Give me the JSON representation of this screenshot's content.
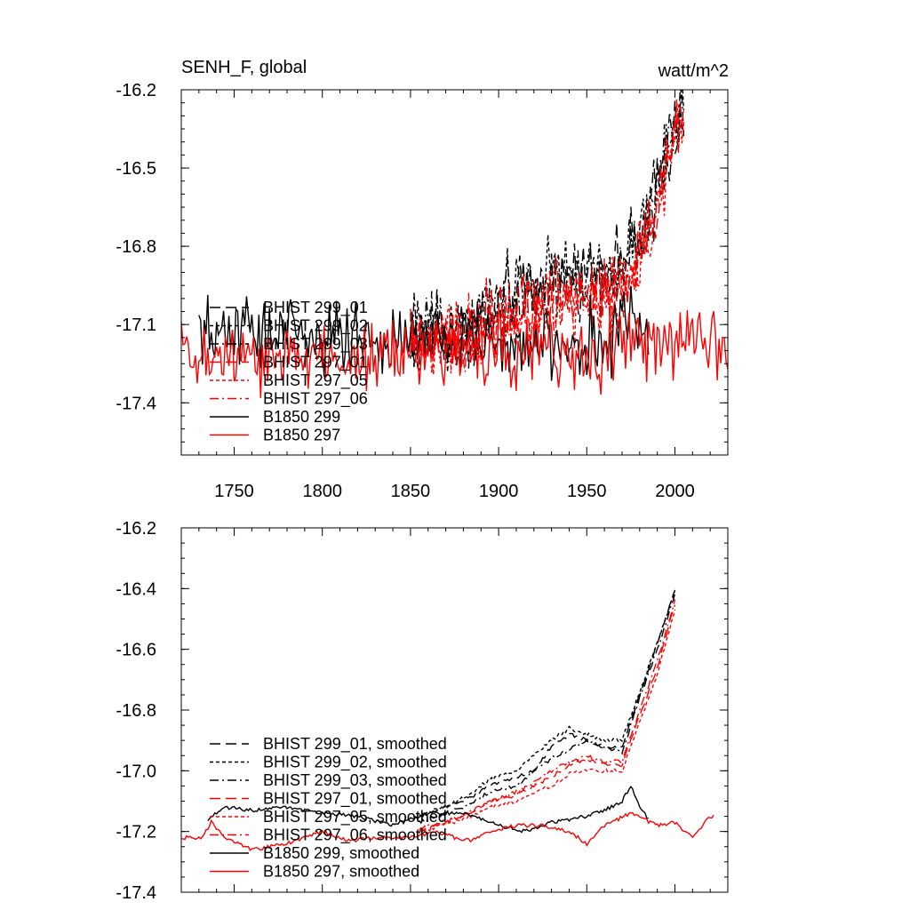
{
  "chart_data": [
    {
      "type": "line",
      "title": "SENH_F, global",
      "units": "watt/m^2",
      "xlim": [
        1720,
        2030
      ],
      "ylim": [
        -17.6,
        -16.2
      ],
      "xticks": [
        1750,
        1800,
        1850,
        1900,
        1950,
        2000
      ],
      "yticks": [
        -16.2,
        -16.5,
        -16.8,
        -17.1,
        -17.4
      ],
      "ytick_labels": [
        "-16.2",
        "-16.5",
        "-16.8",
        "-17.1",
        "-17.4"
      ],
      "legend_position": "left-middle",
      "series": [
        {
          "name": "BHIST 299_01",
          "color": "#000000",
          "dash": "long-dash",
          "x_start": 1850,
          "x_end": 2005,
          "anchors": [
            [
              1850,
              -17.15
            ],
            [
              1880,
              -17.12
            ],
            [
              1900,
              -17.02
            ],
            [
              1930,
              -16.93
            ],
            [
              1950,
              -16.9
            ],
            [
              1970,
              -16.88
            ],
            [
              1985,
              -16.68
            ],
            [
              1995,
              -16.45
            ],
            [
              2005,
              -16.25
            ]
          ]
        },
        {
          "name": "BHIST 299_02",
          "color": "#000000",
          "dash": "short-dash",
          "x_start": 1850,
          "x_end": 2005,
          "anchors": [
            [
              1850,
              -17.15
            ],
            [
              1880,
              -17.12
            ],
            [
              1900,
              -17.0
            ],
            [
              1930,
              -16.9
            ],
            [
              1950,
              -16.9
            ],
            [
              1970,
              -16.88
            ],
            [
              1985,
              -16.7
            ],
            [
              1995,
              -16.45
            ],
            [
              2005,
              -16.25
            ]
          ]
        },
        {
          "name": "BHIST 299_03",
          "color": "#000000",
          "dash": "dash-dot",
          "x_start": 1850,
          "x_end": 2005,
          "anchors": [
            [
              1850,
              -17.15
            ],
            [
              1880,
              -17.14
            ],
            [
              1900,
              -17.05
            ],
            [
              1930,
              -16.95
            ],
            [
              1950,
              -16.93
            ],
            [
              1970,
              -16.92
            ],
            [
              1985,
              -16.7
            ],
            [
              1995,
              -16.47
            ],
            [
              2005,
              -16.25
            ]
          ]
        },
        {
          "name": "BHIST 297_01",
          "color": "#ff0000",
          "dash": "long-dash",
          "x_start": 1850,
          "x_end": 2005,
          "anchors": [
            [
              1850,
              -17.17
            ],
            [
              1880,
              -17.17
            ],
            [
              1900,
              -17.08
            ],
            [
              1930,
              -17.0
            ],
            [
              1950,
              -16.98
            ],
            [
              1970,
              -16.96
            ],
            [
              1985,
              -16.75
            ],
            [
              1995,
              -16.5
            ],
            [
              2005,
              -16.28
            ]
          ]
        },
        {
          "name": "BHIST 297_05",
          "color": "#ff0000",
          "dash": "short-dash",
          "x_start": 1850,
          "x_end": 2005,
          "anchors": [
            [
              1850,
              -17.17
            ],
            [
              1880,
              -17.17
            ],
            [
              1900,
              -17.1
            ],
            [
              1930,
              -17.02
            ],
            [
              1950,
              -17.0
            ],
            [
              1970,
              -16.98
            ],
            [
              1985,
              -16.76
            ],
            [
              1995,
              -16.52
            ],
            [
              2005,
              -16.28
            ]
          ]
        },
        {
          "name": "BHIST 297_06",
          "color": "#ff0000",
          "dash": "dash-dot",
          "x_start": 1850,
          "x_end": 2005,
          "anchors": [
            [
              1850,
              -17.17
            ],
            [
              1880,
              -17.16
            ],
            [
              1900,
              -17.08
            ],
            [
              1930,
              -17.0
            ],
            [
              1950,
              -16.98
            ],
            [
              1970,
              -16.95
            ],
            [
              1985,
              -16.74
            ],
            [
              1995,
              -16.5
            ],
            [
              2005,
              -16.27
            ]
          ]
        },
        {
          "name": "B1850 299",
          "color": "#000000",
          "dash": "solid",
          "x_start": 1730,
          "x_end": 1985,
          "anchors": [
            [
              1730,
              -17.16
            ],
            [
              1760,
              -17.12
            ],
            [
              1800,
              -17.14
            ],
            [
              1840,
              -17.18
            ],
            [
              1880,
              -17.14
            ],
            [
              1920,
              -17.2
            ],
            [
              1960,
              -17.15
            ],
            [
              1975,
              -17.05
            ],
            [
              1985,
              -17.15
            ]
          ]
        },
        {
          "name": "B1850 297",
          "color": "#ff0000",
          "dash": "solid",
          "x_start": 1720,
          "x_end": 2030,
          "anchors": [
            [
              1720,
              -17.22
            ],
            [
              1760,
              -17.24
            ],
            [
              1800,
              -17.22
            ],
            [
              1850,
              -17.22
            ],
            [
              1880,
              -17.2
            ],
            [
              1920,
              -17.19
            ],
            [
              1950,
              -17.22
            ],
            [
              1975,
              -17.17
            ],
            [
              2000,
              -17.18
            ],
            [
              2030,
              -17.16
            ]
          ]
        }
      ]
    },
    {
      "type": "line",
      "title": "",
      "xlim": [
        1720,
        2030
      ],
      "ylim": [
        -17.4,
        -16.2
      ],
      "yticks": [
        -16.2,
        -16.4,
        -16.6,
        -16.8,
        -17.0,
        -17.2,
        -17.4
      ],
      "ytick_labels": [
        "-16.2",
        "-16.4",
        "-16.6",
        "-16.8",
        "-17.0",
        "-17.2",
        "-17.4"
      ],
      "legend_position": "bottom-left",
      "series": [
        {
          "name": "BHIST 299_01, smoothed",
          "color": "#000000",
          "dash": "long-dash",
          "x_start": 1855,
          "x_end": 2000,
          "anchors": [
            [
              1855,
              -17.15
            ],
            [
              1880,
              -17.1
            ],
            [
              1895,
              -17.05
            ],
            [
              1910,
              -17.02
            ],
            [
              1920,
              -17.0
            ],
            [
              1930,
              -16.92
            ],
            [
              1940,
              -16.88
            ],
            [
              1950,
              -16.9
            ],
            [
              1960,
              -16.93
            ],
            [
              1970,
              -16.92
            ],
            [
              1980,
              -16.75
            ],
            [
              1990,
              -16.58
            ],
            [
              2000,
              -16.4
            ]
          ]
        },
        {
          "name": "BHIST 299_02, smoothed",
          "color": "#000000",
          "dash": "short-dash",
          "x_start": 1855,
          "x_end": 2000,
          "anchors": [
            [
              1855,
              -17.15
            ],
            [
              1880,
              -17.09
            ],
            [
              1895,
              -17.03
            ],
            [
              1910,
              -17.0
            ],
            [
              1920,
              -16.95
            ],
            [
              1930,
              -16.9
            ],
            [
              1940,
              -16.86
            ],
            [
              1950,
              -16.88
            ],
            [
              1960,
              -16.9
            ],
            [
              1970,
              -16.9
            ],
            [
              1980,
              -16.74
            ],
            [
              1990,
              -16.58
            ],
            [
              2000,
              -16.41
            ]
          ]
        },
        {
          "name": "BHIST 299_03, smoothed",
          "color": "#000000",
          "dash": "dash-dot",
          "x_start": 1855,
          "x_end": 2000,
          "anchors": [
            [
              1855,
              -17.17
            ],
            [
              1880,
              -17.12
            ],
            [
              1895,
              -17.07
            ],
            [
              1910,
              -17.05
            ],
            [
              1920,
              -17.0
            ],
            [
              1930,
              -16.96
            ],
            [
              1940,
              -16.93
            ],
            [
              1950,
              -16.9
            ],
            [
              1960,
              -16.92
            ],
            [
              1970,
              -16.94
            ],
            [
              1980,
              -16.76
            ],
            [
              1990,
              -16.6
            ],
            [
              2000,
              -16.42
            ]
          ]
        },
        {
          "name": "BHIST 297_01, smoothed",
          "color": "#ff0000",
          "dash": "long-dash",
          "x_start": 1855,
          "x_end": 2000,
          "anchors": [
            [
              1855,
              -17.2
            ],
            [
              1880,
              -17.15
            ],
            [
              1895,
              -17.1
            ],
            [
              1910,
              -17.08
            ],
            [
              1920,
              -17.05
            ],
            [
              1930,
              -17.02
            ],
            [
              1940,
              -16.98
            ],
            [
              1950,
              -16.96
            ],
            [
              1960,
              -16.98
            ],
            [
              1970,
              -16.98
            ],
            [
              1980,
              -16.82
            ],
            [
              1990,
              -16.66
            ],
            [
              2000,
              -16.45
            ]
          ]
        },
        {
          "name": "BHIST 297_05, smoothed",
          "color": "#ff0000",
          "dash": "short-dash",
          "x_start": 1855,
          "x_end": 2000,
          "anchors": [
            [
              1855,
              -17.2
            ],
            [
              1880,
              -17.16
            ],
            [
              1895,
              -17.12
            ],
            [
              1910,
              -17.1
            ],
            [
              1920,
              -17.07
            ],
            [
              1930,
              -17.05
            ],
            [
              1940,
              -17.01
            ],
            [
              1950,
              -17.0
            ],
            [
              1960,
              -17.0
            ],
            [
              1970,
              -17.0
            ],
            [
              1980,
              -16.84
            ],
            [
              1990,
              -16.68
            ],
            [
              2000,
              -16.47
            ]
          ]
        },
        {
          "name": "BHIST 297_06, smoothed",
          "color": "#ff0000",
          "dash": "dash-dot",
          "x_start": 1855,
          "x_end": 2000,
          "anchors": [
            [
              1855,
              -17.19
            ],
            [
              1880,
              -17.15
            ],
            [
              1895,
              -17.1
            ],
            [
              1910,
              -17.07
            ],
            [
              1920,
              -17.04
            ],
            [
              1930,
              -17.0
            ],
            [
              1940,
              -16.97
            ],
            [
              1950,
              -16.95
            ],
            [
              1960,
              -16.97
            ],
            [
              1970,
              -16.97
            ],
            [
              1980,
              -16.8
            ],
            [
              1990,
              -16.64
            ],
            [
              2000,
              -16.44
            ]
          ]
        },
        {
          "name": "B1850 299, smoothed",
          "color": "#000000",
          "dash": "solid",
          "x_start": 1735,
          "x_end": 1985,
          "anchors": [
            [
              1735,
              -17.16
            ],
            [
              1745,
              -17.12
            ],
            [
              1760,
              -17.13
            ],
            [
              1780,
              -17.12
            ],
            [
              1800,
              -17.14
            ],
            [
              1820,
              -17.15
            ],
            [
              1840,
              -17.18
            ],
            [
              1860,
              -17.14
            ],
            [
              1880,
              -17.14
            ],
            [
              1900,
              -17.18
            ],
            [
              1915,
              -17.2
            ],
            [
              1930,
              -17.17
            ],
            [
              1950,
              -17.15
            ],
            [
              1960,
              -17.13
            ],
            [
              1970,
              -17.1
            ],
            [
              1975,
              -17.05
            ],
            [
              1980,
              -17.12
            ],
            [
              1985,
              -17.16
            ]
          ]
        },
        {
          "name": "B1850 297, smoothed",
          "color": "#ff0000",
          "dash": "solid",
          "x_start": 1720,
          "x_end": 2022,
          "anchors": [
            [
              1720,
              -17.22
            ],
            [
              1732,
              -17.22
            ],
            [
              1737,
              -17.17
            ],
            [
              1745,
              -17.22
            ],
            [
              1760,
              -17.26
            ],
            [
              1780,
              -17.24
            ],
            [
              1800,
              -17.2
            ],
            [
              1815,
              -17.23
            ],
            [
              1830,
              -17.22
            ],
            [
              1850,
              -17.22
            ],
            [
              1865,
              -17.2
            ],
            [
              1875,
              -17.22
            ],
            [
              1885,
              -17.23
            ],
            [
              1895,
              -17.2
            ],
            [
              1910,
              -17.18
            ],
            [
              1925,
              -17.18
            ],
            [
              1940,
              -17.2
            ],
            [
              1950,
              -17.24
            ],
            [
              1960,
              -17.18
            ],
            [
              1975,
              -17.14
            ],
            [
              1990,
              -17.18
            ],
            [
              2000,
              -17.17
            ],
            [
              2010,
              -17.22
            ],
            [
              2020,
              -17.15
            ],
            [
              2022,
              -17.15
            ]
          ]
        }
      ]
    }
  ]
}
